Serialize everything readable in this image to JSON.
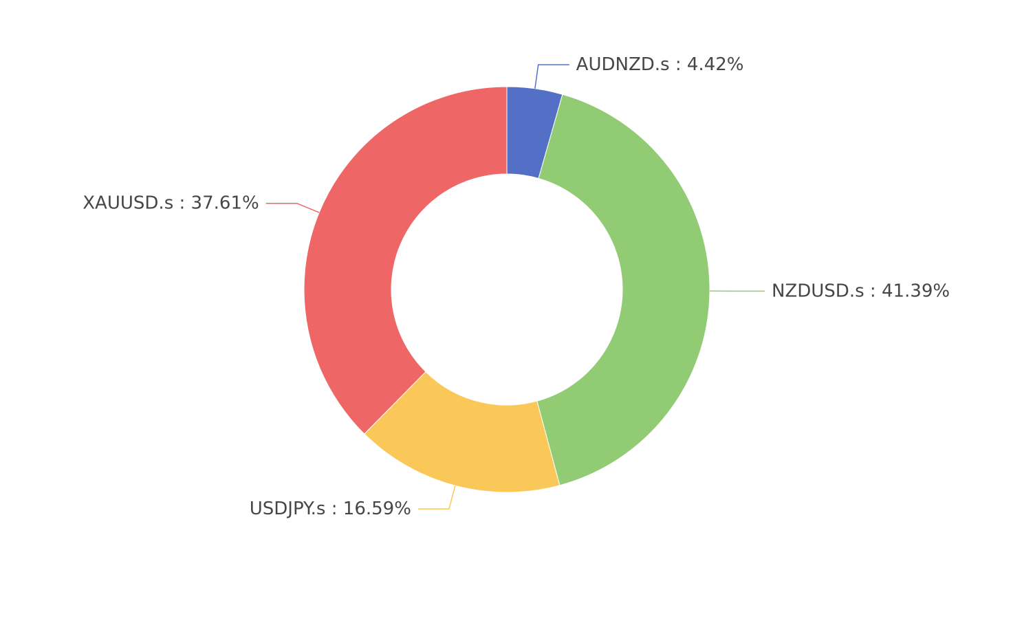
{
  "chart_data": {
    "type": "donut",
    "categories": [
      "AUDNZD.s",
      "NZDUSD.s",
      "USDJPY.s",
      "XAUUSD.s"
    ],
    "values": [
      4.42,
      41.39,
      16.59,
      37.61
    ],
    "value_labels": [
      "4.42%",
      "41.39%",
      "16.59%",
      "37.61%"
    ],
    "label_separator": " : ",
    "colors": [
      "#5470c6",
      "#91cc75",
      "#fac858",
      "#ee6666"
    ]
  }
}
